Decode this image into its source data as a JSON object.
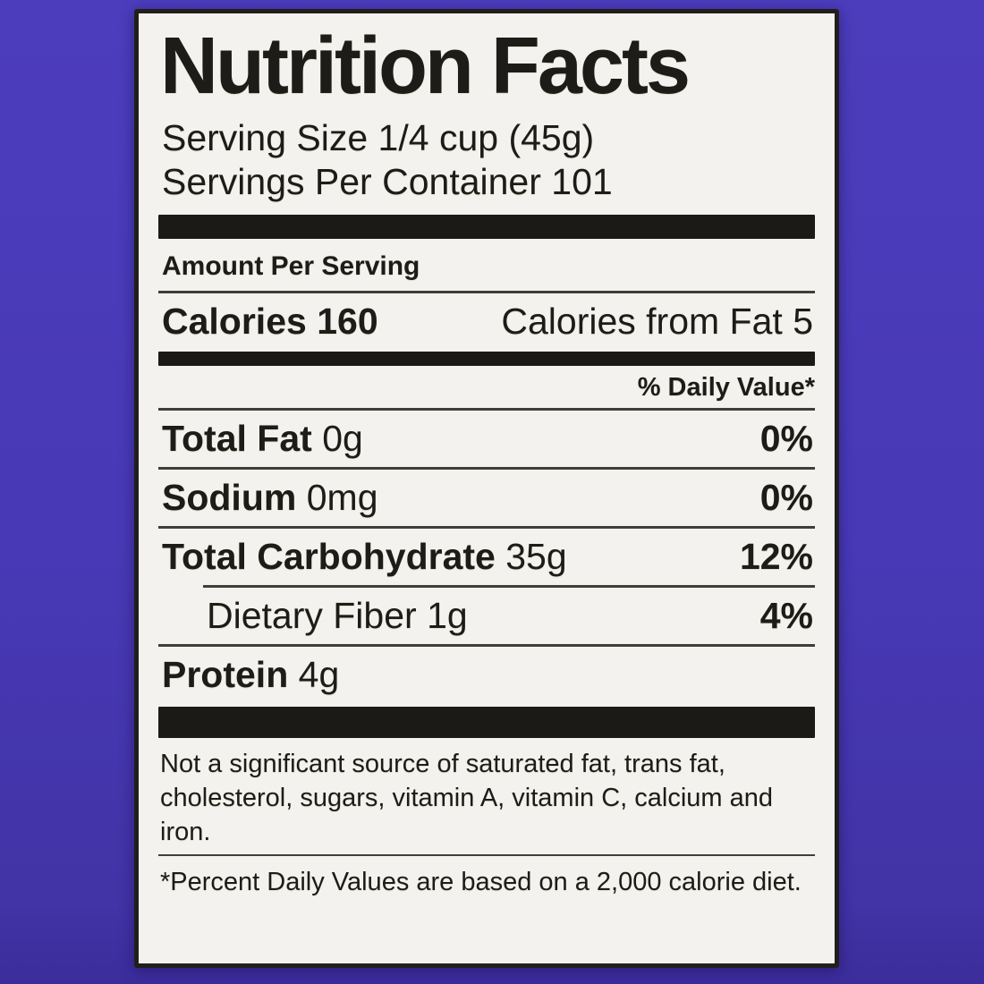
{
  "colors": {
    "page-bg": "#4839b6",
    "label-bg": "#f3f2ee",
    "label-border": "#211f1b",
    "text": "#1d1c19",
    "bar": "#1b1a17",
    "hairline": "#403e38"
  },
  "label": {
    "title": "Nutrition Facts",
    "serving_size": "Serving Size 1/4 cup (45g)",
    "servings_per_container": "Servings Per Container 101",
    "amount_per_serving": "Amount Per Serving",
    "calories": {
      "label": "Calories",
      "value": "160",
      "from_fat": "Calories from Fat 5"
    },
    "daily_value_header": "% Daily Value*",
    "nutrients": [
      {
        "name": "Total Fat",
        "amount": "0g",
        "daily_value": "0%"
      },
      {
        "name": "Sodium",
        "amount": "0mg",
        "daily_value": "0%"
      },
      {
        "name": "Total Carbohydrate",
        "amount": "35g",
        "daily_value": "12%"
      },
      {
        "name": "Dietary Fiber",
        "amount": "1g",
        "daily_value": "4%"
      },
      {
        "name": "Protein",
        "amount": "4g",
        "daily_value": ""
      }
    ],
    "footnotes": {
      "not_significant": "Not a significant source of saturated fat, trans fat, cholesterol, sugars, vitamin A, vitamin C, calcium and iron.",
      "percent_daily_values": "*Percent Daily Values are based on a 2,000 calorie diet."
    }
  }
}
